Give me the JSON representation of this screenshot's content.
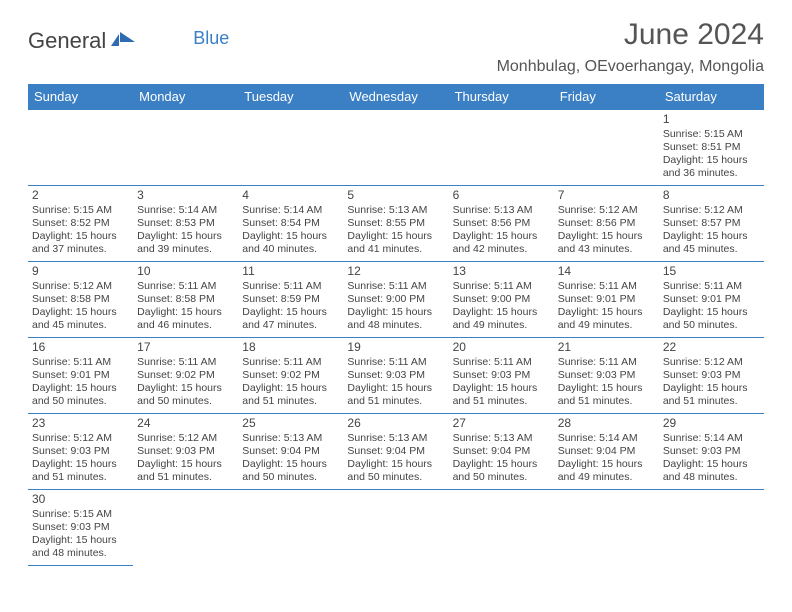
{
  "brand": {
    "general": "General",
    "blue": "Blue"
  },
  "title": "June 2024",
  "location": "Monhbulag, OEvoerhangay, Mongolia",
  "colors": {
    "header_bg": "#3b7fc4",
    "header_fg": "#ffffff",
    "text": "#444444",
    "rule": "#3b7fc4",
    "brand_blue": "#3b7fc4"
  },
  "dayNames": [
    "Sunday",
    "Monday",
    "Tuesday",
    "Wednesday",
    "Thursday",
    "Friday",
    "Saturday"
  ],
  "weeks": [
    [
      null,
      null,
      null,
      null,
      null,
      null,
      {
        "d": "1",
        "sunrise": "5:15 AM",
        "sunset": "8:51 PM",
        "dlh": "15",
        "dlm": "36"
      }
    ],
    [
      {
        "d": "2",
        "sunrise": "5:15 AM",
        "sunset": "8:52 PM",
        "dlh": "15",
        "dlm": "37"
      },
      {
        "d": "3",
        "sunrise": "5:14 AM",
        "sunset": "8:53 PM",
        "dlh": "15",
        "dlm": "39"
      },
      {
        "d": "4",
        "sunrise": "5:14 AM",
        "sunset": "8:54 PM",
        "dlh": "15",
        "dlm": "40"
      },
      {
        "d": "5",
        "sunrise": "5:13 AM",
        "sunset": "8:55 PM",
        "dlh": "15",
        "dlm": "41"
      },
      {
        "d": "6",
        "sunrise": "5:13 AM",
        "sunset": "8:56 PM",
        "dlh": "15",
        "dlm": "42"
      },
      {
        "d": "7",
        "sunrise": "5:12 AM",
        "sunset": "8:56 PM",
        "dlh": "15",
        "dlm": "43"
      },
      {
        "d": "8",
        "sunrise": "5:12 AM",
        "sunset": "8:57 PM",
        "dlh": "15",
        "dlm": "45"
      }
    ],
    [
      {
        "d": "9",
        "sunrise": "5:12 AM",
        "sunset": "8:58 PM",
        "dlh": "15",
        "dlm": "45"
      },
      {
        "d": "10",
        "sunrise": "5:11 AM",
        "sunset": "8:58 PM",
        "dlh": "15",
        "dlm": "46"
      },
      {
        "d": "11",
        "sunrise": "5:11 AM",
        "sunset": "8:59 PM",
        "dlh": "15",
        "dlm": "47"
      },
      {
        "d": "12",
        "sunrise": "5:11 AM",
        "sunset": "9:00 PM",
        "dlh": "15",
        "dlm": "48"
      },
      {
        "d": "13",
        "sunrise": "5:11 AM",
        "sunset": "9:00 PM",
        "dlh": "15",
        "dlm": "49"
      },
      {
        "d": "14",
        "sunrise": "5:11 AM",
        "sunset": "9:01 PM",
        "dlh": "15",
        "dlm": "49"
      },
      {
        "d": "15",
        "sunrise": "5:11 AM",
        "sunset": "9:01 PM",
        "dlh": "15",
        "dlm": "50"
      }
    ],
    [
      {
        "d": "16",
        "sunrise": "5:11 AM",
        "sunset": "9:01 PM",
        "dlh": "15",
        "dlm": "50"
      },
      {
        "d": "17",
        "sunrise": "5:11 AM",
        "sunset": "9:02 PM",
        "dlh": "15",
        "dlm": "50"
      },
      {
        "d": "18",
        "sunrise": "5:11 AM",
        "sunset": "9:02 PM",
        "dlh": "15",
        "dlm": "51"
      },
      {
        "d": "19",
        "sunrise": "5:11 AM",
        "sunset": "9:03 PM",
        "dlh": "15",
        "dlm": "51"
      },
      {
        "d": "20",
        "sunrise": "5:11 AM",
        "sunset": "9:03 PM",
        "dlh": "15",
        "dlm": "51"
      },
      {
        "d": "21",
        "sunrise": "5:11 AM",
        "sunset": "9:03 PM",
        "dlh": "15",
        "dlm": "51"
      },
      {
        "d": "22",
        "sunrise": "5:12 AM",
        "sunset": "9:03 PM",
        "dlh": "15",
        "dlm": "51"
      }
    ],
    [
      {
        "d": "23",
        "sunrise": "5:12 AM",
        "sunset": "9:03 PM",
        "dlh": "15",
        "dlm": "51"
      },
      {
        "d": "24",
        "sunrise": "5:12 AM",
        "sunset": "9:03 PM",
        "dlh": "15",
        "dlm": "51"
      },
      {
        "d": "25",
        "sunrise": "5:13 AM",
        "sunset": "9:04 PM",
        "dlh": "15",
        "dlm": "50"
      },
      {
        "d": "26",
        "sunrise": "5:13 AM",
        "sunset": "9:04 PM",
        "dlh": "15",
        "dlm": "50"
      },
      {
        "d": "27",
        "sunrise": "5:13 AM",
        "sunset": "9:04 PM",
        "dlh": "15",
        "dlm": "50"
      },
      {
        "d": "28",
        "sunrise": "5:14 AM",
        "sunset": "9:04 PM",
        "dlh": "15",
        "dlm": "49"
      },
      {
        "d": "29",
        "sunrise": "5:14 AM",
        "sunset": "9:03 PM",
        "dlh": "15",
        "dlm": "48"
      }
    ],
    [
      {
        "d": "30",
        "sunrise": "5:15 AM",
        "sunset": "9:03 PM",
        "dlh": "15",
        "dlm": "48"
      },
      null,
      null,
      null,
      null,
      null,
      null
    ]
  ],
  "labels": {
    "sunrise": "Sunrise:",
    "sunset": "Sunset:",
    "daylight_prefix": "Daylight:",
    "hours_word": "hours",
    "and_word": "and",
    "minutes_word": "minutes."
  }
}
